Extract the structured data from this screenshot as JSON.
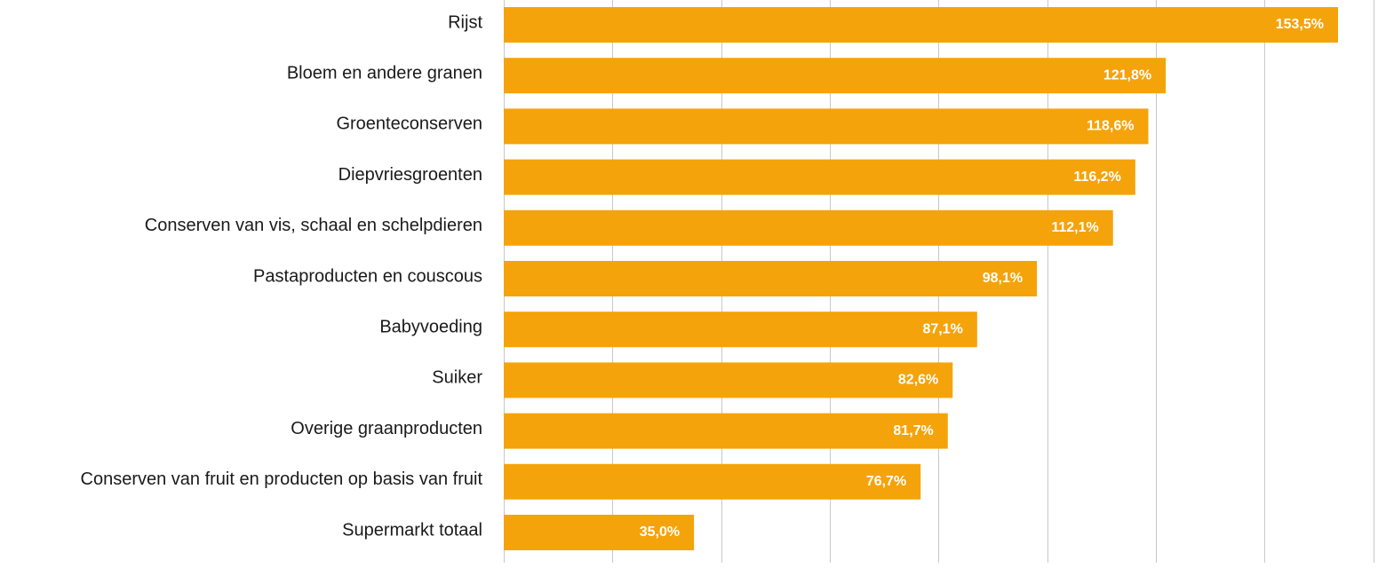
{
  "chart_data": {
    "type": "bar",
    "orientation": "horizontal",
    "title": "",
    "xlabel": "",
    "ylabel": "",
    "categories": [
      "Rijst",
      "Bloem en andere granen",
      "Groenteconserven",
      "Diepvriesgroenten",
      "Conserven van vis, schaal en schelpdieren",
      "Pastaproducten en couscous",
      "Babyvoeding",
      "Suiker",
      "Overige graanproducten",
      "Conserven van fruit en producten op basis van fruit",
      "Supermarkt totaal"
    ],
    "values": [
      153.5,
      121.8,
      118.6,
      116.2,
      112.1,
      98.1,
      87.1,
      82.6,
      81.7,
      76.7,
      35.0
    ],
    "value_labels": [
      "153,5%",
      "121,8%",
      "118,6%",
      "116,2%",
      "112,1%",
      "98,1%",
      "87,1%",
      "82,6%",
      "81,7%",
      "76,7%",
      "35,0%"
    ],
    "xlim": [
      0,
      160
    ],
    "x_grid_step": 20,
    "grid": true,
    "legend": "none",
    "bar_color": "#f5a30a",
    "label_color": "#ffffff"
  }
}
